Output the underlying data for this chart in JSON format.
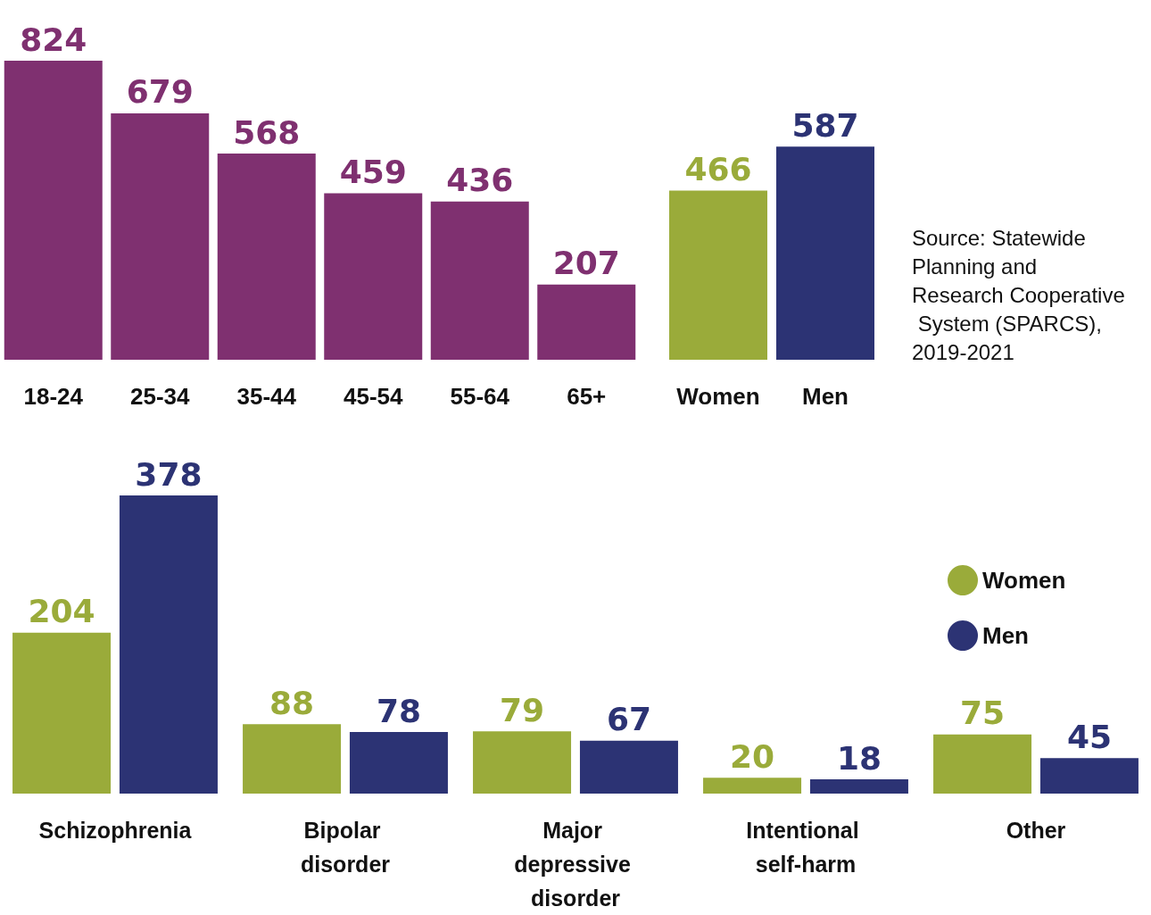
{
  "chart_data": [
    {
      "type": "bar",
      "categories": [
        "18-24",
        "25-34",
        "35-44",
        "45-54",
        "55-64",
        "65+"
      ],
      "values": [
        824,
        679,
        568,
        459,
        436,
        207
      ],
      "color": "#7f3070",
      "data_labels": true,
      "tick_labels": "x",
      "grid": false,
      "legend": false
    },
    {
      "type": "bar",
      "categories": [
        "Women",
        "Men"
      ],
      "values": [
        466,
        587
      ],
      "colors": [
        "#9aab3a",
        "#2c3374"
      ],
      "data_labels": true,
      "tick_labels": "x",
      "grid": false,
      "legend": false,
      "annotations": [
        "Source: Statewide Planning and Research Cooperative System (SPARCS), 2019-2021"
      ]
    },
    {
      "type": "bar",
      "categories": [
        "Schizophrenia",
        "Bipolar disorder",
        "Major depressive disorder",
        "Intentional self-harm",
        "Other"
      ],
      "series": [
        {
          "name": "Women",
          "color": "#9aab3a",
          "values": [
            204,
            88,
            79,
            20,
            75
          ]
        },
        {
          "name": "Men",
          "color": "#2c3374",
          "values": [
            378,
            78,
            67,
            18,
            45
          ]
        }
      ],
      "data_labels": true,
      "tick_labels": "x",
      "grid": false,
      "legend": "right"
    }
  ]
}
